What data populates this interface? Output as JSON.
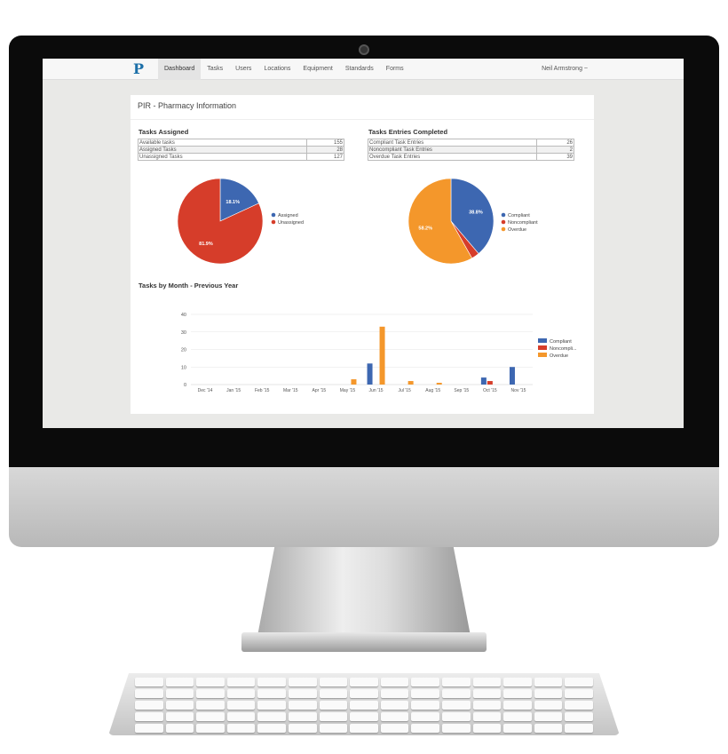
{
  "nav": {
    "items": [
      "Dashboard",
      "Tasks",
      "Users",
      "Locations",
      "Equipment",
      "Standards",
      "Forms"
    ],
    "active": "Dashboard",
    "user": "Neil Armstrong ~"
  },
  "page_title": "PIR - Pharmacy Information",
  "tasks_assigned": {
    "title": "Tasks Assigned",
    "rows": [
      [
        "Available tasks",
        "155"
      ],
      [
        "Assigned Tasks",
        "28"
      ],
      [
        "Unassigned Tasks",
        "127"
      ]
    ]
  },
  "tasks_completed": {
    "title": "Tasks Entries Completed",
    "rows": [
      [
        "Compliant Task Entries",
        "26"
      ],
      [
        "Noncompliant Task Entries",
        "2"
      ],
      [
        "Overdue Task Entries",
        "39"
      ]
    ]
  },
  "colors": {
    "compliant": "#3d67b1",
    "noncompliant": "#d63d2a",
    "overdue": "#f4972b"
  },
  "chart_data": [
    {
      "type": "pie",
      "slices": [
        {
          "name": "Assigned",
          "value": 18.1,
          "label": "18.1%",
          "color": "#3d67b1"
        },
        {
          "name": "Unassigned",
          "value": 81.9,
          "label": "81.9%",
          "color": "#d63d2a"
        }
      ],
      "legend": "right"
    },
    {
      "type": "pie",
      "slices": [
        {
          "name": "Compliant",
          "value": 38.8,
          "label": "38.8%",
          "color": "#3d67b1"
        },
        {
          "name": "Noncompliant",
          "value": 3.0,
          "label": "",
          "color": "#d63d2a"
        },
        {
          "name": "Overdue",
          "value": 58.2,
          "label": "58.2%",
          "color": "#f4972b"
        }
      ],
      "legend": "right"
    },
    {
      "type": "bar",
      "title": "Tasks by Month - Previous Year",
      "categories": [
        "Dec '14",
        "Jan '15",
        "Feb '15",
        "Mar '15",
        "Apr '15",
        "May '15",
        "Jun '15",
        "Jul '15",
        "Aug '15",
        "Sep '15",
        "Oct '15",
        "Nov '15"
      ],
      "series": [
        {
          "name": "Compliant",
          "values": [
            0,
            0,
            0,
            0,
            0,
            0,
            12,
            0,
            0,
            0,
            4,
            10
          ]
        },
        {
          "name": "Noncompli...",
          "values": [
            0,
            0,
            0,
            0,
            0,
            0,
            0,
            0,
            0,
            0,
            2,
            0
          ]
        },
        {
          "name": "Overdue",
          "values": [
            0,
            0,
            0,
            0,
            0,
            3,
            33,
            2,
            1,
            0,
            0,
            0
          ]
        }
      ],
      "ylim": [
        0,
        40
      ],
      "yticks": [
        0,
        10,
        20,
        30,
        40
      ],
      "grid": true,
      "legend": "right"
    }
  ]
}
